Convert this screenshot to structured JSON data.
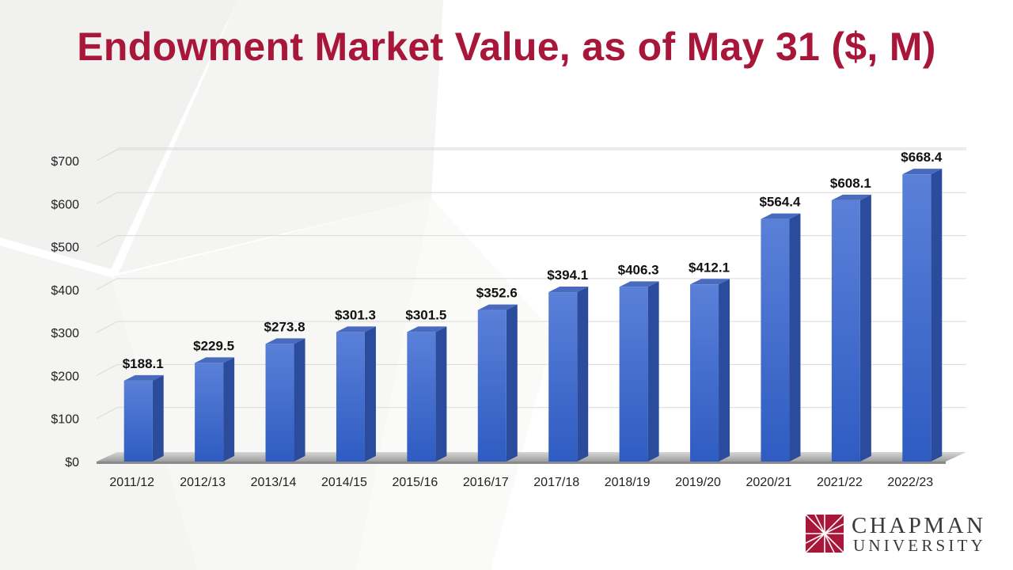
{
  "slide": {
    "title": "Endowment Market Value, as of May 31 ($, M)"
  },
  "logo": {
    "name_line1": "CHAPMAN",
    "name_line2": "UNIVERSITY",
    "color": "#a8173a"
  },
  "chart_data": {
    "type": "bar",
    "title": "Endowment Market Value, as of May 31 ($, M)",
    "categories": [
      "2011/12",
      "2012/13",
      "2013/14",
      "2014/15",
      "2015/16",
      "2016/17",
      "2017/18",
      "2018/19",
      "2019/20",
      "2020/21",
      "2021/22",
      "2022/23"
    ],
    "values": [
      188.1,
      229.5,
      273.8,
      301.3,
      301.5,
      352.6,
      394.1,
      406.3,
      412.1,
      564.4,
      608.1,
      668.4
    ],
    "data_labels": [
      "$188.1",
      "$229.5",
      "$273.8",
      "$301.3",
      "$301.5",
      "$352.6",
      "$394.1",
      "$406.3",
      "$412.1",
      "$564.4",
      "$608.1",
      "$668.4"
    ],
    "y_ticks": [
      0,
      100,
      200,
      300,
      400,
      500,
      600,
      700
    ],
    "y_tick_labels": [
      "$0",
      "$100",
      "$200",
      "$300",
      "$400",
      "$500",
      "$600",
      "$700"
    ],
    "ylim": [
      0,
      700
    ],
    "xlabel": "",
    "ylabel": "",
    "grid": true,
    "legend": "none",
    "bar_style": "3d",
    "bar_color": "#3f6ccf"
  }
}
